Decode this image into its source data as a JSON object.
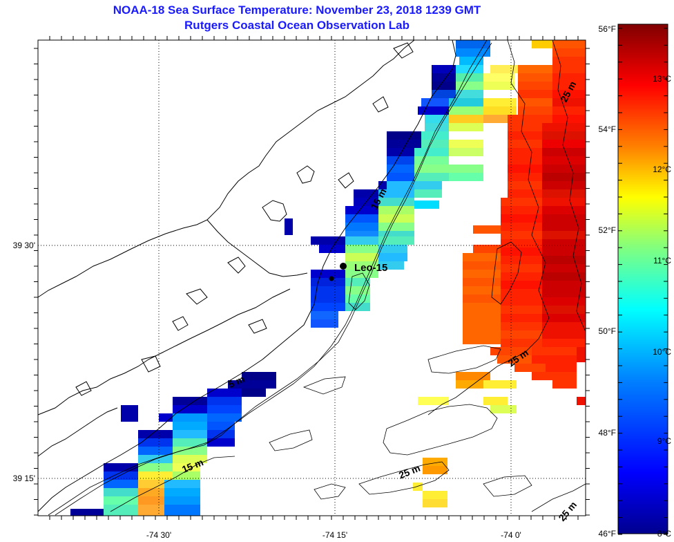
{
  "title": {
    "line1": "NOAA-18 Sea Surface Temperature:  November 23, 2018 1239 GMT",
    "line2": "Rutgers Coastal Ocean Observation Lab"
  },
  "map": {
    "lon_labels": [
      "-74 30'",
      "-74 15'",
      "-74 0'"
    ],
    "lat_labels": [
      "39 30'",
      "39 15'"
    ],
    "station": {
      "name": "Leo-15"
    },
    "contour_labels": [
      "25 m",
      "15 m",
      "5 m",
      "25 m",
      "15 m",
      "25 m",
      "25 m"
    ]
  },
  "colorbar": {
    "fahrenheit_labels": [
      "56°F",
      "54°F",
      "52°F",
      "50°F",
      "48°F",
      "46°F"
    ],
    "celsius_labels": [
      "13°C",
      "12°C",
      "11°C",
      "10°C",
      "9°C",
      "8°C"
    ],
    "range_celsius": [
      8,
      13.5
    ],
    "colors": [
      "#00008f",
      "#0000ff",
      "#0080ff",
      "#00ffff",
      "#80ff80",
      "#ffff00",
      "#ff8000",
      "#ff0000",
      "#800000"
    ]
  },
  "sst_pixels": [
    [
      660,
      58,
      710,
      70,
      "#0066ee"
    ],
    [
      660,
      70,
      710,
      82,
      "#0088ff"
    ],
    [
      665,
      82,
      700,
      94,
      "#00bbff"
    ],
    [
      625,
      94,
      660,
      106,
      "#0000bb"
    ],
    [
      660,
      94,
      700,
      106,
      "#22ddff"
    ],
    [
      710,
      94,
      750,
      106,
      "#ffee55"
    ],
    [
      625,
      106,
      660,
      118,
      "#000099"
    ],
    [
      660,
      106,
      700,
      118,
      "#55eeaa"
    ],
    [
      700,
      106,
      745,
      118,
      "#ffff66"
    ],
    [
      625,
      118,
      660,
      130,
      "#00008b"
    ],
    [
      660,
      118,
      700,
      130,
      "#88ff88"
    ],
    [
      700,
      118,
      745,
      130,
      "#eeff55"
    ],
    [
      625,
      130,
      660,
      142,
      "#0044dd"
    ],
    [
      660,
      130,
      700,
      142,
      "#44dddd"
    ],
    [
      610,
      142,
      650,
      154,
      "#1155ff"
    ],
    [
      650,
      142,
      700,
      154,
      "#22ccdd"
    ],
    [
      700,
      142,
      748,
      154,
      "#ffee33"
    ],
    [
      605,
      154,
      650,
      166,
      "#0000cc"
    ],
    [
      650,
      154,
      700,
      166,
      "#99ff77"
    ],
    [
      700,
      154,
      748,
      166,
      "#ffdd22"
    ],
    [
      615,
      166,
      650,
      178,
      "#33ddee"
    ],
    [
      650,
      166,
      700,
      178,
      "#ffcc22"
    ],
    [
      700,
      166,
      735,
      178,
      "#ffaa33"
    ],
    [
      615,
      178,
      650,
      190,
      "#44dddd"
    ],
    [
      650,
      178,
      700,
      190,
      "#ddff55"
    ],
    [
      560,
      190,
      610,
      202,
      "#000088"
    ],
    [
      610,
      190,
      650,
      202,
      "#44eecc"
    ],
    [
      560,
      202,
      610,
      214,
      "#000099"
    ],
    [
      610,
      202,
      650,
      214,
      "#55eebb"
    ],
    [
      650,
      202,
      700,
      214,
      "#eeff55"
    ],
    [
      560,
      214,
      600,
      226,
      "#0000aa"
    ],
    [
      600,
      214,
      650,
      226,
      "#44eecc"
    ],
    [
      650,
      214,
      700,
      226,
      "#ccff66"
    ],
    [
      560,
      226,
      600,
      238,
      "#0044ee"
    ],
    [
      600,
      226,
      650,
      238,
      "#77ff99"
    ],
    [
      560,
      238,
      600,
      250,
      "#0066ff"
    ],
    [
      600,
      238,
      650,
      250,
      "#88ff88"
    ],
    [
      650,
      238,
      700,
      250,
      "#88ff88"
    ],
    [
      560,
      250,
      600,
      262,
      "#0055ff"
    ],
    [
      600,
      250,
      650,
      262,
      "#55eebb"
    ],
    [
      650,
      250,
      700,
      262,
      "#66ffaa"
    ],
    [
      548,
      262,
      560,
      274,
      "#0000aa"
    ],
    [
      560,
      262,
      600,
      274,
      "#22bbff"
    ],
    [
      600,
      262,
      640,
      274,
      "#33ccee"
    ],
    [
      512,
      274,
      548,
      286,
      "#0000aa"
    ],
    [
      548,
      274,
      600,
      286,
      "#22bbff"
    ],
    [
      600,
      274,
      640,
      286,
      "#55eebb"
    ],
    [
      512,
      286,
      548,
      298,
      "#0000bb"
    ],
    [
      548,
      286,
      600,
      298,
      "#44ddcc"
    ],
    [
      600,
      290,
      636,
      302,
      "#00ddff"
    ],
    [
      500,
      298,
      548,
      310,
      "#0000cc"
    ],
    [
      548,
      298,
      600,
      310,
      "#aaff66"
    ],
    [
      500,
      310,
      548,
      322,
      "#0055ff"
    ],
    [
      548,
      310,
      600,
      322,
      "#ccff55"
    ],
    [
      412,
      316,
      424,
      340,
      "#0000aa"
    ],
    [
      500,
      322,
      548,
      334,
      "#0077ff"
    ],
    [
      548,
      322,
      600,
      334,
      "#88ff88"
    ],
    [
      500,
      334,
      548,
      346,
      "#1188ff"
    ],
    [
      548,
      334,
      600,
      346,
      "#44ddcc"
    ],
    [
      450,
      342,
      500,
      354,
      "#0000aa"
    ],
    [
      500,
      342,
      548,
      354,
      "#33ccee"
    ],
    [
      548,
      342,
      600,
      354,
      "#55eebb"
    ],
    [
      462,
      354,
      500,
      366,
      "#0000cc"
    ],
    [
      500,
      354,
      548,
      366,
      "#88ff88"
    ],
    [
      548,
      354,
      590,
      366,
      "#33ccee"
    ],
    [
      500,
      366,
      548,
      378,
      "#ccff55"
    ],
    [
      548,
      366,
      590,
      378,
      "#22bbff"
    ],
    [
      500,
      378,
      548,
      390,
      "#99ff77"
    ],
    [
      548,
      378,
      585,
      390,
      "#33ccee"
    ],
    [
      450,
      390,
      500,
      402,
      "#0000cc"
    ],
    [
      500,
      390,
      548,
      402,
      "#88ff88"
    ],
    [
      450,
      402,
      500,
      414,
      "#0022dd"
    ],
    [
      500,
      402,
      536,
      414,
      "#55eebb"
    ],
    [
      450,
      414,
      500,
      426,
      "#0033ee"
    ],
    [
      500,
      414,
      536,
      426,
      "#88ff88"
    ],
    [
      450,
      426,
      500,
      438,
      "#0033ee"
    ],
    [
      500,
      426,
      536,
      438,
      "#66ffaa"
    ],
    [
      450,
      438,
      500,
      450,
      "#0044ff"
    ],
    [
      500,
      438,
      536,
      450,
      "#44ddcc"
    ],
    [
      450,
      450,
      490,
      462,
      "#1166ff"
    ],
    [
      450,
      462,
      490,
      474,
      "#1155ff"
    ],
    [
      350,
      538,
      400,
      550,
      "#000088"
    ],
    [
      330,
      550,
      400,
      562,
      "#000099"
    ],
    [
      350,
      562,
      385,
      574,
      "#000088"
    ],
    [
      300,
      562,
      350,
      574,
      "#0000cc"
    ],
    [
      250,
      574,
      300,
      586,
      "#000099"
    ],
    [
      300,
      574,
      350,
      586,
      "#0033ee"
    ],
    [
      175,
      586,
      200,
      598,
      "#0000aa"
    ],
    [
      250,
      586,
      300,
      598,
      "#0000cc"
    ],
    [
      300,
      586,
      350,
      598,
      "#0044ff"
    ],
    [
      175,
      598,
      200,
      610,
      "#0000aa"
    ],
    [
      230,
      598,
      250,
      610,
      "#0000cc"
    ],
    [
      250,
      598,
      300,
      610,
      "#0099ff"
    ],
    [
      300,
      598,
      350,
      610,
      "#0066ff"
    ],
    [
      250,
      610,
      300,
      622,
      "#00aaff"
    ],
    [
      300,
      610,
      340,
      622,
      "#0055ff"
    ],
    [
      200,
      622,
      250,
      634,
      "#0000aa"
    ],
    [
      250,
      622,
      300,
      634,
      "#22bbff"
    ],
    [
      300,
      622,
      340,
      634,
      "#0033ee"
    ],
    [
      200,
      634,
      250,
      646,
      "#0033ee"
    ],
    [
      250,
      634,
      300,
      646,
      "#55eebb"
    ],
    [
      300,
      634,
      340,
      646,
      "#0000cc"
    ],
    [
      200,
      646,
      250,
      658,
      "#0066ff"
    ],
    [
      250,
      646,
      300,
      658,
      "#88ff88"
    ],
    [
      200,
      658,
      250,
      670,
      "#33ccee"
    ],
    [
      250,
      658,
      300,
      670,
      "#ddff55"
    ],
    [
      150,
      670,
      200,
      682,
      "#0000aa"
    ],
    [
      200,
      670,
      250,
      682,
      "#88ff88"
    ],
    [
      250,
      670,
      290,
      682,
      "#eeff55"
    ],
    [
      150,
      682,
      200,
      694,
      "#0033ee"
    ],
    [
      200,
      682,
      250,
      694,
      "#ffee33"
    ],
    [
      250,
      682,
      290,
      694,
      "#aaff66"
    ],
    [
      150,
      694,
      200,
      706,
      "#0066ff"
    ],
    [
      200,
      694,
      238,
      706,
      "#ffcc33"
    ],
    [
      238,
      694,
      290,
      706,
      "#22bbff"
    ],
    [
      150,
      706,
      200,
      718,
      "#44ddcc"
    ],
    [
      200,
      706,
      238,
      718,
      "#ffaa22"
    ],
    [
      238,
      706,
      290,
      718,
      "#00aaff"
    ],
    [
      150,
      718,
      200,
      730,
      "#66ffaa"
    ],
    [
      200,
      718,
      238,
      730,
      "#ff9922"
    ],
    [
      238,
      718,
      290,
      730,
      "#0099ff"
    ],
    [
      102,
      736,
      150,
      746,
      "#000099"
    ],
    [
      150,
      730,
      200,
      746,
      "#55eebb"
    ],
    [
      200,
      730,
      238,
      746,
      "#ffaa33"
    ],
    [
      238,
      730,
      290,
      746,
      "#0077ff"
    ],
    [
      770,
      58,
      800,
      70,
      "#ffcc00"
    ],
    [
      800,
      58,
      848,
      70,
      "#ff5500"
    ],
    [
      800,
      70,
      848,
      82,
      "#ff4400"
    ],
    [
      800,
      82,
      848,
      94,
      "#ff3300"
    ],
    [
      750,
      94,
      800,
      106,
      "#ff6600"
    ],
    [
      800,
      94,
      848,
      106,
      "#ff3300"
    ],
    [
      750,
      106,
      800,
      118,
      "#ff5500"
    ],
    [
      800,
      106,
      848,
      118,
      "#ff2200"
    ],
    [
      750,
      118,
      800,
      130,
      "#ff4400"
    ],
    [
      800,
      118,
      848,
      130,
      "#ff2200"
    ],
    [
      750,
      130,
      800,
      142,
      "#ff3300"
    ],
    [
      800,
      130,
      848,
      142,
      "#ff1100"
    ],
    [
      750,
      142,
      800,
      154,
      "#ff5500"
    ],
    [
      800,
      142,
      848,
      154,
      "#ee1100"
    ],
    [
      750,
      154,
      800,
      166,
      "#ff4400"
    ],
    [
      800,
      154,
      848,
      166,
      "#ff2200"
    ],
    [
      735,
      166,
      800,
      178,
      "#ff3300"
    ],
    [
      800,
      166,
      848,
      178,
      "#ff1100"
    ],
    [
      735,
      178,
      785,
      190,
      "#ff3300"
    ],
    [
      785,
      178,
      848,
      190,
      "#ee1100"
    ],
    [
      735,
      190,
      785,
      202,
      "#ff2200"
    ],
    [
      785,
      190,
      848,
      202,
      "#dd1100"
    ],
    [
      735,
      202,
      785,
      214,
      "#ff3300"
    ],
    [
      785,
      202,
      848,
      214,
      "#ee0000"
    ],
    [
      735,
      214,
      785,
      226,
      "#ff2200"
    ],
    [
      785,
      214,
      848,
      226,
      "#cc0000"
    ],
    [
      735,
      226,
      785,
      238,
      "#ff2200"
    ],
    [
      785,
      226,
      848,
      238,
      "#dd0000"
    ],
    [
      735,
      238,
      785,
      250,
      "#ff1100"
    ],
    [
      785,
      238,
      848,
      250,
      "#cc0000"
    ],
    [
      735,
      250,
      785,
      262,
      "#ff2200"
    ],
    [
      785,
      250,
      848,
      262,
      "#bb0000"
    ],
    [
      735,
      262,
      785,
      274,
      "#ff3300"
    ],
    [
      785,
      262,
      848,
      274,
      "#cc0000"
    ],
    [
      735,
      274,
      785,
      286,
      "#ff2200"
    ],
    [
      785,
      274,
      848,
      286,
      "#dd1100"
    ],
    [
      725,
      286,
      785,
      298,
      "#ff3300"
    ],
    [
      785,
      286,
      848,
      298,
      "#ee1100"
    ],
    [
      725,
      298,
      785,
      310,
      "#ff2200"
    ],
    [
      785,
      298,
      848,
      310,
      "#dd0000"
    ],
    [
      725,
      310,
      785,
      322,
      "#ff1100"
    ],
    [
      785,
      310,
      848,
      322,
      "#cc0000"
    ],
    [
      685,
      326,
      725,
      338,
      "#ff5500"
    ],
    [
      725,
      322,
      785,
      334,
      "#ff2200"
    ],
    [
      785,
      322,
      848,
      334,
      "#cc0000"
    ],
    [
      725,
      334,
      785,
      346,
      "#ff3300"
    ],
    [
      785,
      334,
      848,
      346,
      "#dd1100"
    ],
    [
      725,
      346,
      785,
      358,
      "#ff2200"
    ],
    [
      785,
      346,
      848,
      358,
      "#cc0000"
    ],
    [
      685,
      354,
      725,
      366,
      "#ff4400"
    ],
    [
      725,
      358,
      785,
      370,
      "#ff1100"
    ],
    [
      785,
      358,
      848,
      370,
      "#cc0000"
    ],
    [
      670,
      366,
      725,
      378,
      "#ff6600"
    ],
    [
      725,
      370,
      785,
      382,
      "#ff2200"
    ],
    [
      785,
      370,
      848,
      382,
      "#bb0000"
    ],
    [
      670,
      378,
      725,
      390,
      "#ff5500"
    ],
    [
      725,
      382,
      785,
      394,
      "#ff3300"
    ],
    [
      785,
      382,
      848,
      394,
      "#cc0000"
    ],
    [
      670,
      390,
      725,
      402,
      "#ff6600"
    ],
    [
      725,
      394,
      785,
      406,
      "#ff2200"
    ],
    [
      785,
      394,
      848,
      406,
      "#bb0000"
    ],
    [
      670,
      402,
      725,
      414,
      "#ff5500"
    ],
    [
      725,
      406,
      785,
      418,
      "#ff1100"
    ],
    [
      785,
      406,
      848,
      418,
      "#cc0000"
    ],
    [
      670,
      414,
      725,
      426,
      "#ff6600"
    ],
    [
      725,
      418,
      785,
      430,
      "#ff2200"
    ],
    [
      785,
      418,
      848,
      430,
      "#cc0000"
    ],
    [
      670,
      426,
      725,
      438,
      "#ff5500"
    ],
    [
      725,
      430,
      785,
      442,
      "#ff2200"
    ],
    [
      785,
      430,
      848,
      442,
      "#dd0000"
    ],
    [
      670,
      438,
      725,
      450,
      "#ff6600"
    ],
    [
      725,
      442,
      785,
      454,
      "#ff3300"
    ],
    [
      785,
      442,
      848,
      454,
      "#dd1100"
    ],
    [
      670,
      450,
      725,
      462,
      "#ff6600"
    ],
    [
      725,
      454,
      785,
      466,
      "#ff2200"
    ],
    [
      785,
      454,
      848,
      466,
      "#dd0000"
    ],
    [
      670,
      462,
      725,
      474,
      "#ff6600"
    ],
    [
      725,
      466,
      785,
      478,
      "#ff3300"
    ],
    [
      785,
      466,
      848,
      478,
      "#ee1100"
    ],
    [
      670,
      474,
      725,
      486,
      "#ff6600"
    ],
    [
      725,
      478,
      785,
      490,
      "#ff4400"
    ],
    [
      785,
      478,
      848,
      490,
      "#ee1100"
    ],
    [
      670,
      486,
      725,
      498,
      "#ff6600"
    ],
    [
      725,
      490,
      785,
      502,
      "#ff3300"
    ],
    [
      785,
      490,
      848,
      502,
      "#ff2200"
    ],
    [
      710,
      502,
      770,
      514,
      "#ff4400"
    ],
    [
      770,
      502,
      835,
      514,
      "#ff3300"
    ],
    [
      835,
      502,
      848,
      524,
      "#ee1100"
    ],
    [
      720,
      514,
      770,
      526,
      "#ff5500"
    ],
    [
      770,
      514,
      835,
      526,
      "#ff2200"
    ],
    [
      745,
      526,
      790,
      538,
      "#ff4400"
    ],
    [
      790,
      526,
      835,
      538,
      "#ff2200"
    ],
    [
      660,
      538,
      710,
      550,
      "#ff8800"
    ],
    [
      770,
      538,
      835,
      550,
      "#ff3300"
    ],
    [
      660,
      550,
      700,
      562,
      "#ffaa00"
    ],
    [
      700,
      550,
      748,
      562,
      "#ffee33"
    ],
    [
      800,
      550,
      835,
      562,
      "#ff3300"
    ],
    [
      835,
      574,
      848,
      586,
      "#ee1100"
    ],
    [
      605,
      574,
      650,
      586,
      "#ffff55"
    ],
    [
      700,
      574,
      735,
      586,
      "#ffee33"
    ],
    [
      710,
      586,
      748,
      598,
      "#ddff55"
    ],
    [
      612,
      662,
      648,
      674,
      "#ffaa00"
    ],
    [
      612,
      674,
      648,
      686,
      "#ff9900"
    ],
    [
      598,
      698,
      612,
      710,
      "#ffee33"
    ],
    [
      612,
      710,
      648,
      722,
      "#ffee33"
    ],
    [
      612,
      722,
      648,
      734,
      "#ffdd33"
    ]
  ]
}
